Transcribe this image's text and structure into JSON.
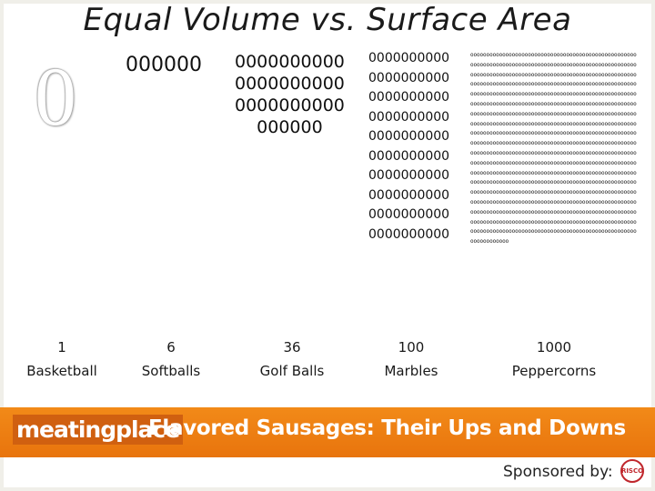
{
  "slide": {
    "title": "Equal Volume vs. Surface Area"
  },
  "groups": [
    {
      "count": "1",
      "name": "Basketball",
      "glyphs": "0"
    },
    {
      "count": "6",
      "name": "Softballs",
      "glyphs": "000000"
    },
    {
      "count": "36",
      "name": "Golf Balls",
      "glyphs": "0000000000\n0000000000\n0000000000\n000000"
    },
    {
      "count": "100",
      "name": "Marbles",
      "glyphs": "0000000000\n0000000000\n0000000000\n0000000000\n0000000000\n0000000000\n0000000000\n0000000000\n0000000000\n0000000000"
    },
    {
      "count": "1000",
      "name": "Peppercorns",
      "glyph_char": "o",
      "glyph_count": 1000
    }
  ],
  "banner": {
    "logo": "meatingplace",
    "title": "Flavored Sausages: Their Ups and Downs"
  },
  "sponsor": {
    "label": "Sponsored by:",
    "logo_text": "RISCO"
  },
  "colors": {
    "banner": "#e8740d",
    "sponsor_logo": "#c0262c"
  }
}
